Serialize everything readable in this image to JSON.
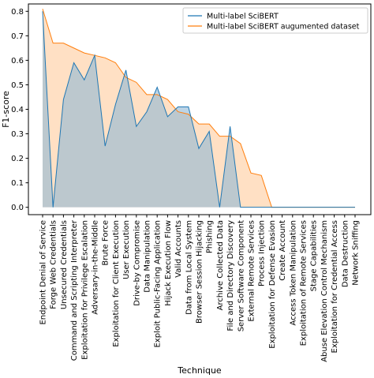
{
  "chart_data": {
    "type": "line",
    "title": "",
    "xlabel": "Technique",
    "ylabel": "F1-score",
    "ylim": [
      -0.03,
      0.83
    ],
    "yticks": [
      0.0,
      0.1,
      0.2,
      0.3,
      0.4,
      0.5,
      0.6,
      0.7,
      0.8
    ],
    "ytick_labels": [
      "0.0",
      "0.1",
      "0.2",
      "0.3",
      "0.4",
      "0.5",
      "0.6",
      "0.7",
      "0.8"
    ],
    "grid": false,
    "legend_position": "top-right",
    "categories": [
      "Endpoint Denial of Service",
      "Forge Web Credentials",
      "Unsecured Credentials",
      "Command and Scripting Interpreter",
      "Exploitation for Privilege Escalation",
      "Adversary-in-the-Middle",
      "Brute Force",
      "Exploitation for Client Execution",
      "User Execution",
      "Drive-by Compromise",
      "Data Manipulation",
      "Exploit Public-Facing Application",
      "Hijack Execution Flow",
      "Valid Accounts",
      "Data from Local System",
      "Browser Session Hijacking",
      "Phishing",
      "Archive Collected Data",
      "File and Directory Discovery",
      "Server Software Component",
      "External Remote Services",
      "Process Injection",
      "Exploitation for Defense Evasion",
      "Create Account",
      "Access Token Manipulation",
      "Exploitation of Remote Services",
      "Stage Capabilities",
      "Abuse Elevation Control Mechanism",
      "Exploitation for Credential Access",
      "Data Destruction",
      "Network Sniffing"
    ],
    "series": [
      {
        "name": "Multi-label SciBERT",
        "color": "#1f77b4",
        "fill": "#8fb7d6",
        "values": [
          0.8,
          0.0,
          0.44,
          0.59,
          0.52,
          0.62,
          0.25,
          0.42,
          0.56,
          0.33,
          0.39,
          0.49,
          0.37,
          0.41,
          0.41,
          0.24,
          0.31,
          0.0,
          0.33,
          0.0,
          0.0,
          0.0,
          0.0,
          0.0,
          0.0,
          0.0,
          0.0,
          0.0,
          0.0,
          0.0,
          0.0
        ]
      },
      {
        "name": "Multi-label SciBERT augumented dataset",
        "color": "#ff7f0e",
        "fill": "#ffd5b0",
        "values": [
          0.81,
          0.67,
          0.67,
          0.65,
          0.63,
          0.62,
          0.61,
          0.59,
          0.53,
          0.51,
          0.46,
          0.46,
          0.44,
          0.39,
          0.38,
          0.34,
          0.34,
          0.29,
          0.29,
          0.26,
          0.14,
          0.13,
          0.0,
          0.0,
          0.0,
          0.0,
          0.0,
          0.0,
          0.0,
          0.0,
          0.0
        ]
      }
    ]
  }
}
